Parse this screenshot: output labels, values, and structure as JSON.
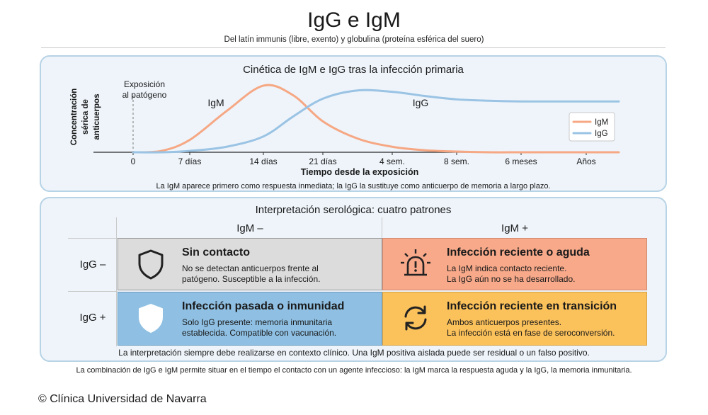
{
  "header": {
    "title": "IgG e IgM",
    "subtitle": "Del latín immunis (libre, exento) y globulina (proteína esférica del suero)"
  },
  "kinetics": {
    "panel_title": "Cinética de IgM e IgG tras la infección primaria",
    "annotation": [
      "Exposición",
      "al patógeno"
    ],
    "curve_labels": {
      "igm": "IgM",
      "igg": "IgG"
    },
    "caption": "La IgM aparece primero como respuesta inmediata; la IgG la sustituye como anticuerpo de memoria a largo plazo."
  },
  "chart_data": {
    "type": "line",
    "title": "Cinética de IgM e IgG tras la infección primaria",
    "xlabel": "Tiempo desde la exposición",
    "ylabel": [
      "Concentración",
      "sérica de",
      "anticuerpos"
    ],
    "categories": [
      "0",
      "7 días",
      "14 días",
      "21 días",
      "4 sem.",
      "8 sem.",
      "6 meses",
      "Años"
    ],
    "ylim": [
      0,
      1
    ],
    "y_ticks": false,
    "grid": false,
    "legend_position": "right",
    "series": [
      {
        "name": "IgM",
        "color": "#f6a783",
        "x": [
          0,
          0.5,
          1,
          1.5,
          2,
          2.5,
          3,
          3.5,
          4,
          4.5,
          5,
          5.5,
          6,
          6.5,
          7,
          7.4
        ],
        "values": [
          0,
          0.02,
          0.18,
          0.6,
          0.97,
          0.83,
          0.45,
          0.2,
          0.08,
          0.03,
          0.01,
          0,
          0,
          0,
          0,
          0
        ]
      },
      {
        "name": "IgG",
        "color": "#9ac3e4",
        "x": [
          0,
          0.5,
          1,
          1.5,
          2,
          2.5,
          3,
          3.5,
          4,
          4.5,
          5,
          5.5,
          6,
          6.5,
          7,
          7.4
        ],
        "values": [
          0,
          0,
          0.02,
          0.08,
          0.23,
          0.52,
          0.78,
          0.9,
          0.88,
          0.82,
          0.77,
          0.75,
          0.74,
          0.74,
          0.74,
          0.74
        ]
      }
    ]
  },
  "serology": {
    "panel_title": "Interpretación serológica: cuatro patrones",
    "col_headers": [
      "IgM –",
      "IgM +"
    ],
    "row_headers": [
      "IgG –",
      "IgG +"
    ],
    "cells": {
      "no_contact": {
        "title": "Sin contacto",
        "lines": [
          "No se detectan anticuerpos frente al",
          "patógeno. Susceptible a la infección."
        ],
        "icon": "shield-outline-icon",
        "color": "#dcdcdc"
      },
      "acute": {
        "title": "Infección reciente o aguda",
        "lines": [
          "La IgM indica contacto reciente.",
          "La IgG aún no se ha desarrollado."
        ],
        "icon": "alarm-siren-icon",
        "color": "#f7a98a"
      },
      "past": {
        "title": "Infección pasada o inmunidad",
        "lines": [
          "Solo IgG presente: memoria inmunitaria",
          "establecida. Compatible con vacunación."
        ],
        "icon": "shield-filled-icon",
        "color": "#8fc0e3"
      },
      "transition": {
        "title": "Infección reciente en transición",
        "lines": [
          "Ambos anticuerpos presentes.",
          "La infección está en fase de seroconversión."
        ],
        "icon": "refresh-cycle-icon",
        "color": "#fbc15b"
      }
    },
    "caption": "La interpretación siempre debe realizarse en contexto clínico. Una IgM positiva aislada puede ser residual o un falso positivo."
  },
  "footer": {
    "text": "La combinación de IgG e IgM permite situar en el tiempo el contacto con un agente infeccioso: la IgM marca la respuesta aguda y la IgG, la memoria inmunitaria.",
    "copyright": "© Clínica Universidad de Navarra"
  }
}
